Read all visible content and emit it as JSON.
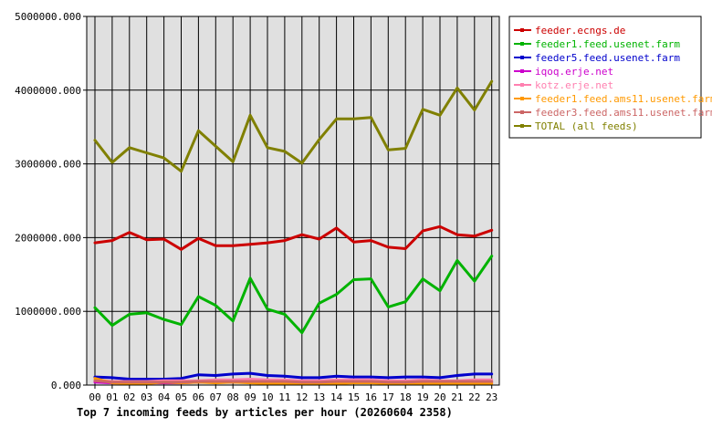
{
  "chart_data": {
    "type": "line",
    "title": "Top 7 incoming feeds by articles per hour (20260604 2358)",
    "xlabel": "",
    "ylabel": "",
    "ylim": [
      0,
      5000000
    ],
    "y_ticks": [
      "0.000",
      "1000000.000",
      "2000000.000",
      "3000000.000",
      "4000000.000",
      "5000000.000"
    ],
    "y_tick_values": [
      0,
      1000000,
      2000000,
      3000000,
      4000000,
      5000000
    ],
    "grid": true,
    "legend_position": "right",
    "categories": [
      "00",
      "01",
      "02",
      "03",
      "04",
      "05",
      "06",
      "07",
      "08",
      "09",
      "10",
      "11",
      "12",
      "13",
      "14",
      "15",
      "16",
      "17",
      "18",
      "19",
      "20",
      "21",
      "22",
      "23"
    ],
    "series": [
      {
        "name": "feeder.ecngs.de",
        "color": "#cc0000",
        "values": [
          1930000,
          1960000,
          2070000,
          1970000,
          1980000,
          1840000,
          1990000,
          1890000,
          1890000,
          1910000,
          1930000,
          1960000,
          2040000,
          1980000,
          2130000,
          1940000,
          1960000,
          1870000,
          1850000,
          2090000,
          2150000,
          2040000,
          2020000,
          2100000
        ]
      },
      {
        "name": "feeder1.feed.usenet.farm",
        "color": "#00b300",
        "values": [
          1050000,
          810000,
          960000,
          980000,
          890000,
          820000,
          1200000,
          1080000,
          870000,
          1450000,
          1030000,
          960000,
          710000,
          1110000,
          1230000,
          1430000,
          1440000,
          1060000,
          1130000,
          1440000,
          1280000,
          1690000,
          1410000,
          1750000
        ]
      },
      {
        "name": "feeder5.feed.usenet.farm",
        "color": "#0000cc",
        "values": [
          110000,
          100000,
          80000,
          80000,
          80000,
          90000,
          140000,
          130000,
          150000,
          160000,
          130000,
          120000,
          100000,
          100000,
          120000,
          110000,
          110000,
          100000,
          110000,
          110000,
          100000,
          130000,
          150000,
          150000
        ]
      },
      {
        "name": "iqoq.erje.net",
        "color": "#cc00cc",
        "values": [
          40000,
          30000,
          30000,
          30000,
          30000,
          30000,
          40000,
          40000,
          40000,
          40000,
          40000,
          40000,
          40000,
          40000,
          40000,
          40000,
          40000,
          40000,
          40000,
          40000,
          40000,
          40000,
          40000,
          40000
        ]
      },
      {
        "name": "kotz.erje.net",
        "color": "#ff80b0",
        "values": [
          70000,
          50000,
          50000,
          50000,
          60000,
          60000,
          60000,
          70000,
          70000,
          80000,
          70000,
          70000,
          60000,
          60000,
          70000,
          70000,
          70000,
          60000,
          60000,
          70000,
          60000,
          60000,
          70000,
          70000
        ]
      },
      {
        "name": "feeder1.feed.ams11.usenet.farm",
        "color": "#ff9900",
        "values": [
          90000,
          30000,
          20000,
          20000,
          40000,
          30000,
          40000,
          30000,
          40000,
          30000,
          20000,
          20000,
          20000,
          20000,
          20000,
          30000,
          30000,
          20000,
          20000,
          20000,
          20000,
          20000,
          20000,
          20000
        ]
      },
      {
        "name": "feeder3.feed.ams11.usenet.farm",
        "color": "#cc6666",
        "values": [
          60000,
          40000,
          40000,
          40000,
          40000,
          40000,
          50000,
          50000,
          50000,
          50000,
          50000,
          50000,
          40000,
          40000,
          50000,
          50000,
          50000,
          40000,
          40000,
          50000,
          50000,
          50000,
          50000,
          50000
        ]
      },
      {
        "name": "TOTAL (all feeds)",
        "color": "#808000",
        "values": [
          3320000,
          3020000,
          3220000,
          3150000,
          3080000,
          2900000,
          3450000,
          3240000,
          3030000,
          3660000,
          3220000,
          3170000,
          3010000,
          3330000,
          3610000,
          3610000,
          3630000,
          3190000,
          3210000,
          3740000,
          3660000,
          4030000,
          3730000,
          4120000
        ]
      }
    ]
  }
}
